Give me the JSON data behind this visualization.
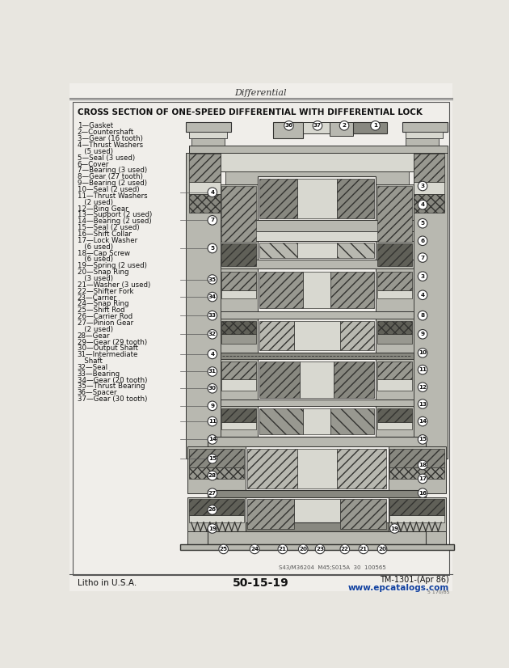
{
  "bg_color": "#e8e6e0",
  "page_color": "#f0eeea",
  "border_color": "#555555",
  "header_text": "Differential",
  "title_line1": "CROSS SECTION OF ONE-SPEED DIFFERENTIAL WITH DIFFERENTIAL LOCK",
  "footer_left": "Litho in U.S.A.",
  "footer_center": "50-15-19",
  "footer_right_top": "TM-1301-(Apr 86)",
  "footer_right_bot": "www.epcatalogs.com",
  "footer_small": "5 170/85",
  "part_num_line": "S43/M36204  M45;S015A  30  100565",
  "parts_list": [
    "1—Gasket",
    "2—Countershaft",
    "3—Gear (16 tooth)",
    "4—Thrust Washers",
    "   (5 used)",
    "5—Seal (3 used)",
    "6—Cover",
    "7—Bearing (3 used)",
    "8—Gear (27 tooth)",
    "9—Bearing (2 used)",
    "10—Seal (2 used)",
    "11—Thrust Washers",
    "   (2 used)",
    "12—Ring Gear",
    "13—Support (2 used)",
    "14—Bearing (2 used)",
    "15—Seal (2 used)",
    "16—Shift Collar",
    "17—Lock Washer",
    "   (6 used)",
    "18—Cap Screw",
    "   (6 used)",
    "19—Spring (2 used)",
    "20—Snap Ring",
    "   (3 used)",
    "21—Washer (3 used)",
    "22—Shifter Fork",
    "23—Carrier",
    "24—Snap Ring",
    "25—Shift Rod",
    "26—Carrier Rod",
    "27—Pinion Gear",
    "   (2 used)",
    "28—Gear",
    "29—Gear (29 tooth)",
    "30—Output Shaft",
    "31—Intermediate",
    "   Shaft",
    "32—Seal",
    "33—Bearing",
    "34—Gear (20 tooth)",
    "35—Thrust Bearing",
    "36—Spacer",
    "37—Gear (30 tooth)"
  ]
}
